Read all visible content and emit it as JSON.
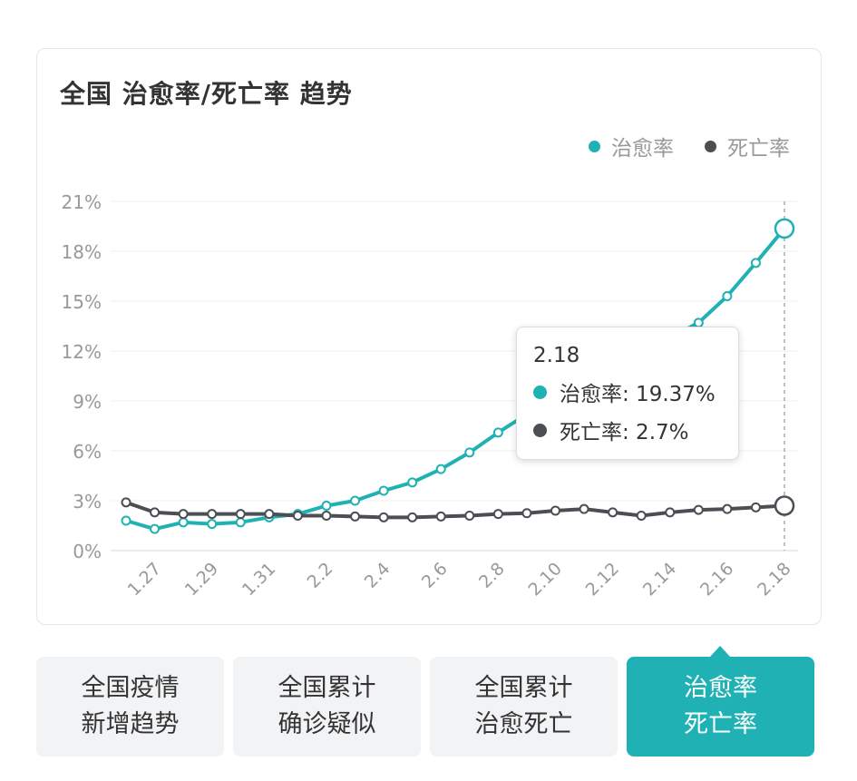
{
  "title": "全国 治愈率/死亡率 趋势",
  "legend": [
    {
      "label": "治愈率",
      "color": "#1fb1b3"
    },
    {
      "label": "死亡率",
      "color": "#4b4f54"
    }
  ],
  "tooltip": {
    "date": "2.18",
    "rows": [
      {
        "label": "治愈率: 19.37%",
        "color": "#1fb1b3"
      },
      {
        "label": "死亡率: 2.7%",
        "color": "#4b4f54"
      }
    ]
  },
  "chart_data": {
    "type": "line",
    "x": [
      "1.26",
      "1.27",
      "1.28",
      "1.29",
      "1.30",
      "1.31",
      "2.1",
      "2.2",
      "2.3",
      "2.4",
      "2.5",
      "2.6",
      "2.7",
      "2.8",
      "2.9",
      "2.10",
      "2.11",
      "2.12",
      "2.13",
      "2.14",
      "2.15",
      "2.16",
      "2.17",
      "2.18"
    ],
    "x_tick_labels": [
      "1.27",
      "1.29",
      "1.31",
      "2.2",
      "2.4",
      "2.6",
      "2.8",
      "2.10",
      "2.12",
      "2.14",
      "2.16",
      "2.18"
    ],
    "y_tick_labels": [
      "0%",
      "3%",
      "6%",
      "9%",
      "12%",
      "15%",
      "18%",
      "21%"
    ],
    "ylim": [
      0,
      21
    ],
    "y_unit": "%",
    "grid": true,
    "legend_position": "top-right",
    "series": [
      {
        "name": "治愈率",
        "color": "#1fb1b3",
        "values": [
          1.8,
          1.3,
          1.7,
          1.6,
          1.7,
          2.0,
          2.2,
          2.7,
          3.0,
          3.6,
          4.1,
          4.9,
          5.9,
          7.1,
          8.2,
          9.0,
          9.8,
          10.9,
          11.9,
          12.8,
          13.7,
          15.3,
          17.3,
          19.37
        ]
      },
      {
        "name": "死亡率",
        "color": "#4b4f54",
        "values": [
          2.9,
          2.3,
          2.2,
          2.2,
          2.2,
          2.2,
          2.1,
          2.1,
          2.05,
          2.0,
          2.0,
          2.05,
          2.1,
          2.2,
          2.25,
          2.4,
          2.5,
          2.3,
          2.1,
          2.3,
          2.45,
          2.5,
          2.6,
          2.7
        ]
      }
    ],
    "highlight_index": 23
  },
  "tabs": [
    {
      "line1": "全国疫情",
      "line2": "新增趋势",
      "active": false
    },
    {
      "line1": "全国累计",
      "line2": "确诊疑似",
      "active": false
    },
    {
      "line1": "全国累计",
      "line2": "治愈死亡",
      "active": false
    },
    {
      "line1": "治愈率",
      "line2": "死亡率",
      "active": true
    }
  ]
}
